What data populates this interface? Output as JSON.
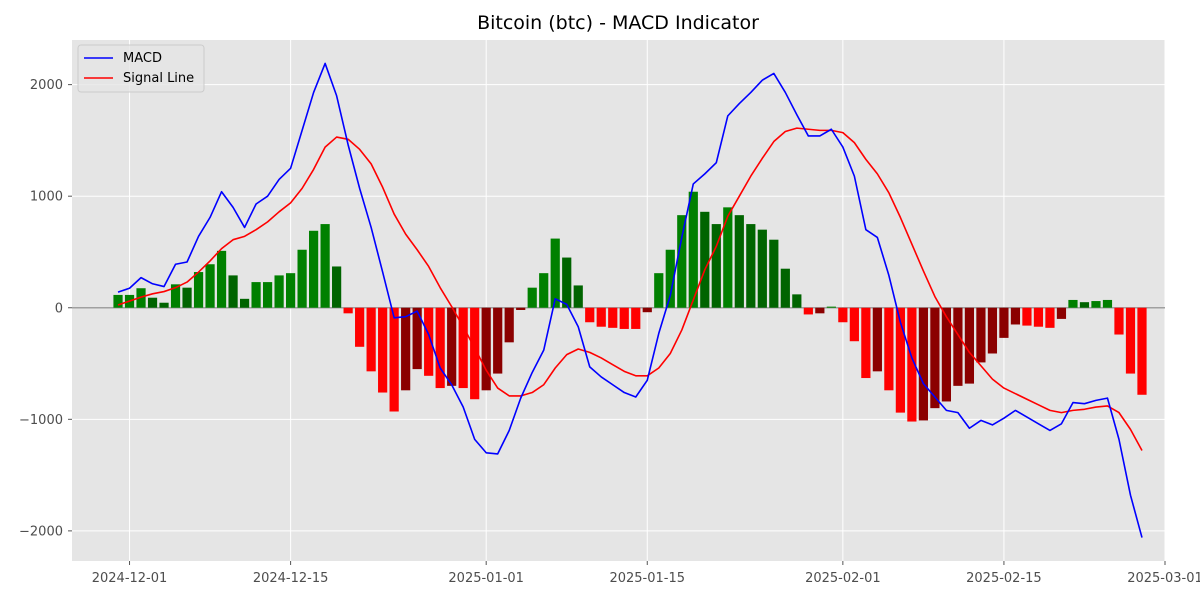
{
  "chart_data": {
    "type": "line",
    "title": "Bitcoin (btc) - MACD Indicator",
    "xlabel": "",
    "ylabel": "",
    "grid": true,
    "legend_position": "top-left",
    "x_tick_labels": [
      "2024-12-01",
      "2024-12-15",
      "2025-01-01",
      "2025-01-15",
      "2025-02-01",
      "2025-02-15",
      "2025-03-01"
    ],
    "y_tick_labels": [
      "−2000",
      "−1000",
      "0",
      "1000",
      "2000"
    ],
    "x_range": [
      "2024-11-26",
      "2025-03-01"
    ],
    "ylim": [
      -2270,
      2400
    ],
    "start_date": "2024-11-30",
    "colors": {
      "macd": "#0000ff",
      "signal": "#ff0000",
      "hist_pos_rising": "#008000",
      "hist_pos_falling": "#006400",
      "hist_neg_falling": "#ff0000",
      "hist_neg_rising": "#8b0000",
      "zero_line": "#a0a0a0"
    },
    "series": [
      {
        "name": "MACD",
        "values": [
          140,
          175,
          270,
          215,
          190,
          390,
          410,
          640,
          810,
          1040,
          900,
          720,
          930,
          1000,
          1150,
          1250,
          1590,
          1930,
          2190,
          1900,
          1460,
          1070,
          720,
          320,
          -90,
          -80,
          -30,
          -240,
          -540,
          -690,
          -890,
          -1180,
          -1300,
          -1310,
          -1100,
          -810,
          -580,
          -380,
          80,
          30,
          -170,
          -530,
          -620,
          -690,
          -760,
          -800,
          -650,
          -230,
          110,
          630,
          1110,
          1200,
          1300,
          1720,
          1830,
          1930,
          2040,
          2100,
          1930,
          1730,
          1540,
          1540,
          1600,
          1440,
          1180,
          700,
          630,
          290,
          -130,
          -450,
          -680,
          -800,
          -920,
          -940,
          -1080,
          -1010,
          -1050,
          -990,
          -920,
          -980,
          -1040,
          -1100,
          -1040,
          -850,
          -860,
          -830,
          -810,
          -1180,
          -1680,
          -2060
        ]
      },
      {
        "name": "Signal Line",
        "values": [
          25,
          60,
          95,
          125,
          145,
          180,
          230,
          320,
          420,
          530,
          610,
          640,
          700,
          770,
          860,
          940,
          1070,
          1240,
          1440,
          1530,
          1510,
          1420,
          1290,
          1080,
          840,
          660,
          520,
          370,
          180,
          10,
          -170,
          -360,
          -560,
          -720,
          -790,
          -790,
          -760,
          -690,
          -540,
          -420,
          -370,
          -400,
          -450,
          -510,
          -570,
          -610,
          -610,
          -540,
          -410,
          -200,
          70,
          340,
          550,
          820,
          1000,
          1180,
          1340,
          1490,
          1580,
          1610,
          1600,
          1590,
          1590,
          1570,
          1480,
          1330,
          1200,
          1030,
          810,
          570,
          330,
          100,
          -80,
          -240,
          -400,
          -520,
          -640,
          -720,
          -770,
          -820,
          -870,
          -920,
          -940,
          -920,
          -910,
          -890,
          -880,
          -940,
          -1090,
          -1280
        ]
      },
      {
        "name": "Histogram",
        "values": [
          115,
          115,
          175,
          90,
          45,
          210,
          180,
          320,
          390,
          510,
          290,
          80,
          230,
          230,
          290,
          310,
          520,
          690,
          750,
          370,
          -50,
          -350,
          -570,
          -760,
          -930,
          -740,
          -550,
          -610,
          -720,
          -700,
          -720,
          -820,
          -740,
          -590,
          -310,
          -20,
          180,
          310,
          620,
          450,
          200,
          -130,
          -170,
          -180,
          -190,
          -190,
          -40,
          310,
          520,
          830,
          1040,
          860,
          750,
          900,
          830,
          750,
          700,
          610,
          350,
          120,
          -60,
          -50,
          10,
          -130,
          -300,
          -630,
          -570,
          -740,
          -940,
          -1020,
          -1010,
          -900,
          -840,
          -700,
          -680,
          -490,
          -410,
          -270,
          -150,
          -160,
          -170,
          -180,
          -100,
          70,
          50,
          60,
          70,
          -240,
          -590,
          -780
        ]
      }
    ]
  }
}
